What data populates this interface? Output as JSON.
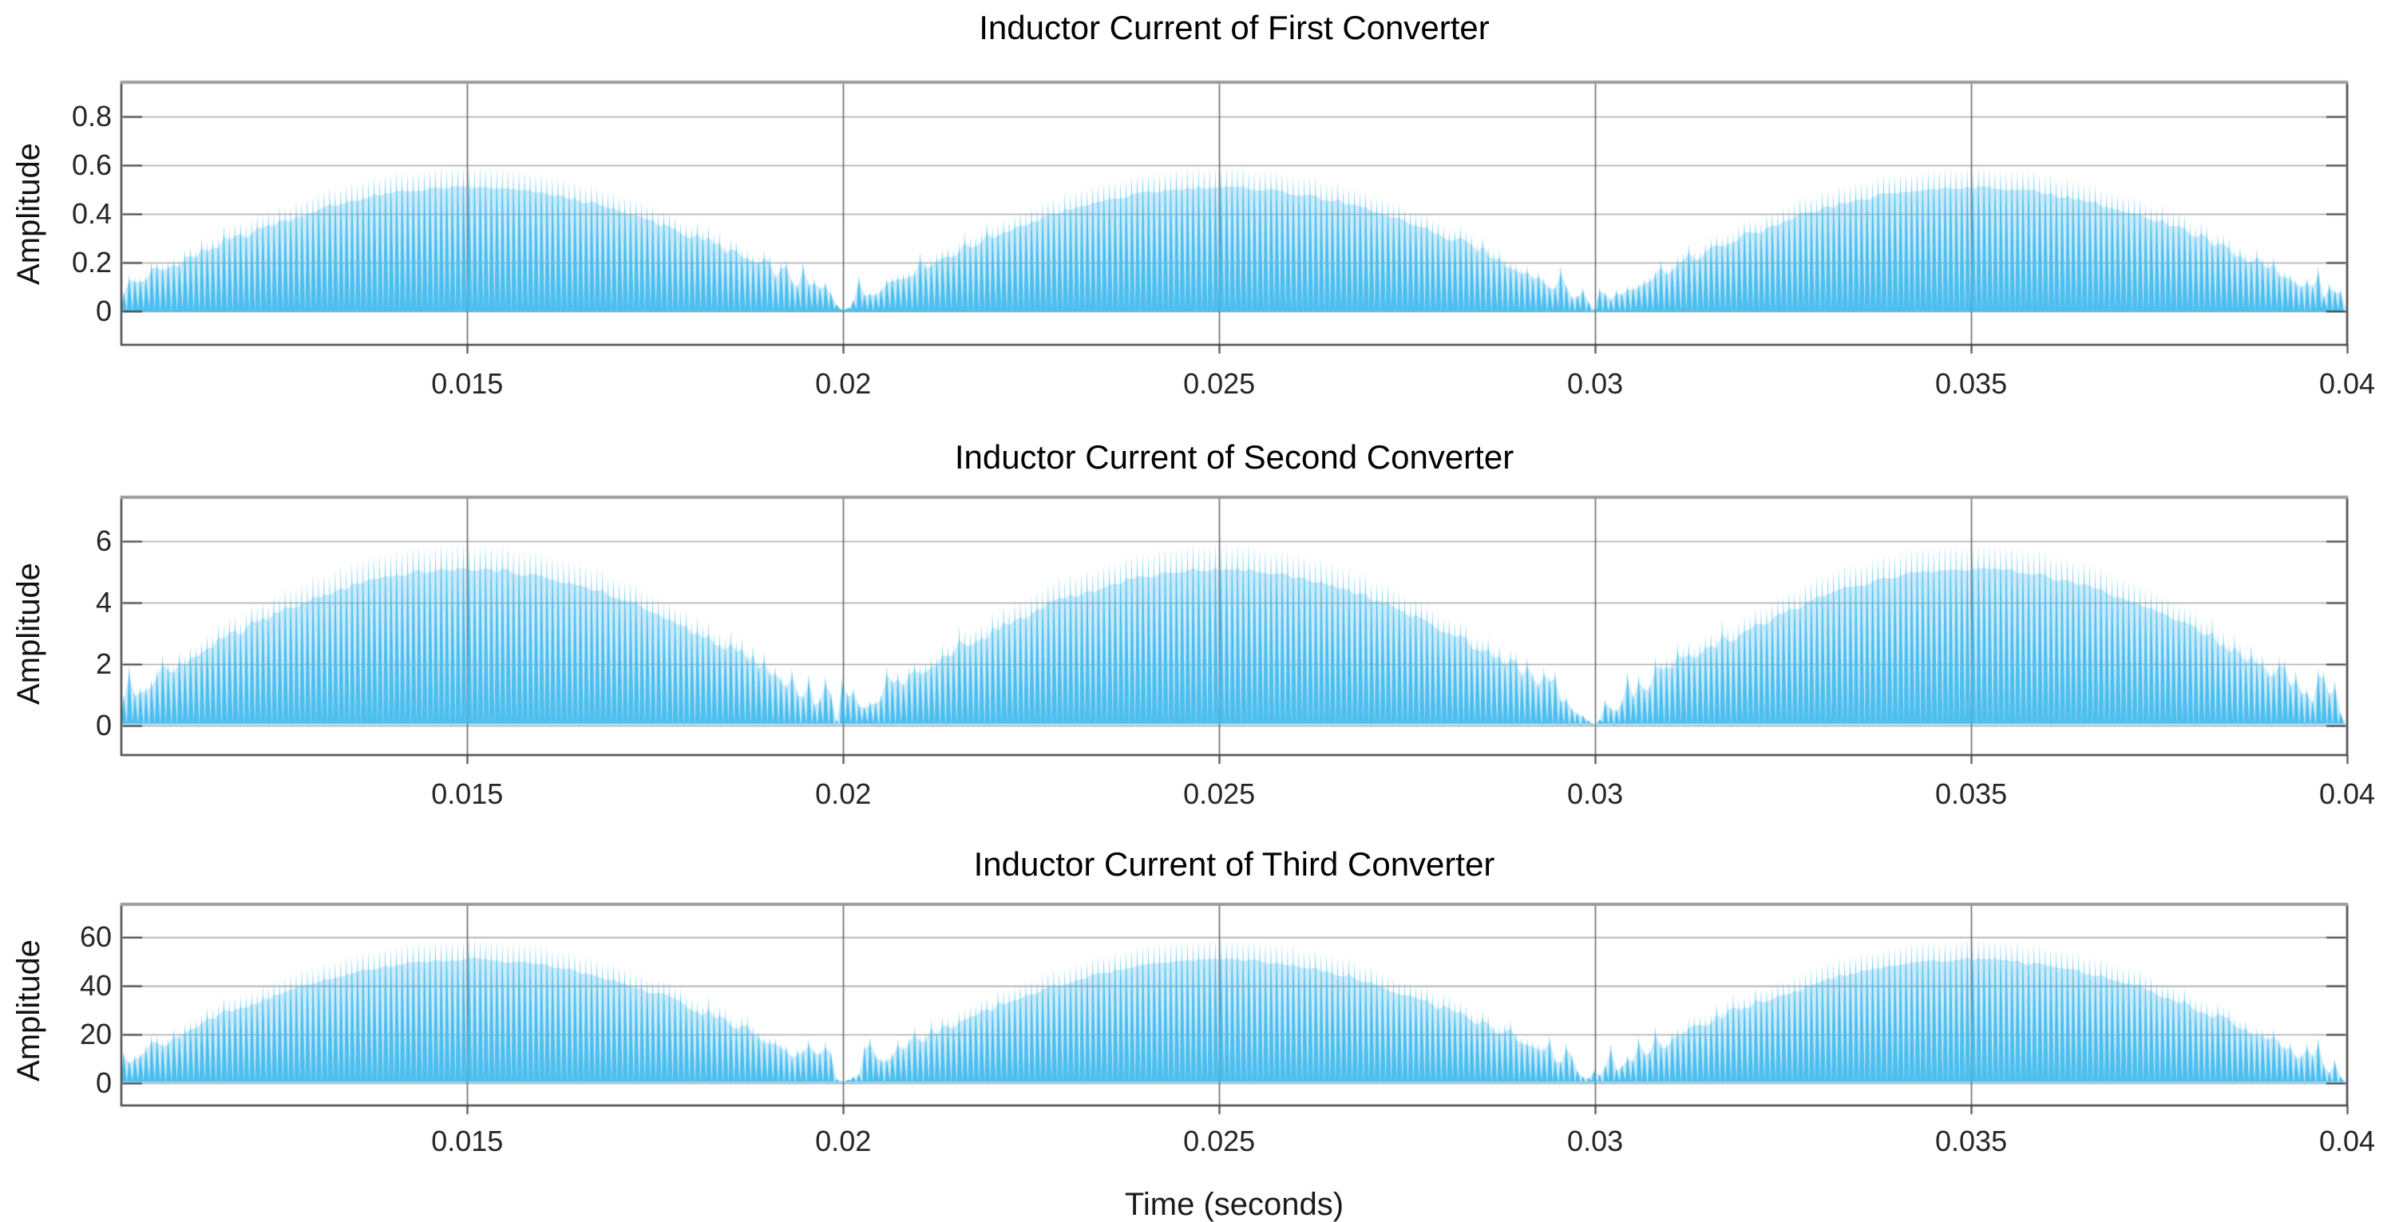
{
  "figure": {
    "background_color": "#ffffff",
    "xlabel": "Time (seconds)",
    "line_color": "#4DBEEE",
    "underfill_color": "rgba(77,190,238,0.30)",
    "hgrid_color": "#a9a9a9",
    "vgrid_color": "#6f6f6f",
    "vgrid_overlay_color": "rgba(75,75,75,0.22)",
    "box_color": "#4a4a4a",
    "box_top_color": "#9e9e9e",
    "tick_mark_color": "#3c3c3c",
    "text_color": "#262626"
  },
  "chart_data": [
    {
      "type": "line",
      "title": "Inductor Current of First Converter",
      "ylabel": "Amplitude",
      "xlim": [
        0.0104,
        0.04
      ],
      "ylim": [
        -0.138,
        0.941
      ],
      "xtick_values": [
        0.015,
        0.02,
        0.025,
        0.03,
        0.035,
        0.04
      ],
      "xtick_labels": [
        "0.015",
        "0.02",
        "0.025",
        "0.03",
        "0.035",
        "0.04"
      ],
      "ytick_values": [
        0,
        0.2,
        0.4,
        0.6,
        0.8
      ],
      "ytick_labels": [
        "0",
        "0.2",
        "0.4",
        "0.6",
        "0.8"
      ],
      "grid": true,
      "line_color": "#4DBEEE",
      "waveform": {
        "kind": "pwm-sawtooth",
        "envelope": "peak*abs(sin(2*pi*50*t))",
        "envelope_peak": 0.59,
        "envelope_zero_times": [
          0.01,
          0.02,
          0.03,
          0.04
        ],
        "hump_peak_times": [
          0.015,
          0.025,
          0.035
        ],
        "hump_peak_value": 0.59,
        "switching_frequency_hz": 13500,
        "min_value": 0
      }
    },
    {
      "type": "line",
      "title": "Inductor Current of Second Converter",
      "ylabel": "Amplitude",
      "xlim": [
        0.0104,
        0.04
      ],
      "ylim": [
        -0.96,
        7.43
      ],
      "xtick_values": [
        0.015,
        0.02,
        0.025,
        0.03,
        0.035,
        0.04
      ],
      "xtick_labels": [
        "0.015",
        "0.02",
        "0.025",
        "0.03",
        "0.035",
        "0.04"
      ],
      "ytick_values": [
        0,
        2,
        4,
        6
      ],
      "ytick_labels": [
        "0",
        "2",
        "4",
        "6"
      ],
      "grid": true,
      "line_color": "#4DBEEE",
      "waveform": {
        "kind": "pwm-sawtooth",
        "envelope": "peak*abs(sin(2*pi*50*t))",
        "envelope_peak": 5.9,
        "envelope_zero_times": [
          0.01,
          0.02,
          0.03,
          0.04
        ],
        "hump_peak_times": [
          0.015,
          0.025,
          0.035
        ],
        "hump_peak_value": 5.9,
        "switching_frequency_hz": 13500,
        "min_value": 0
      }
    },
    {
      "type": "line",
      "title": "Inductor Current of Third Converter",
      "ylabel": "Amplitude",
      "xlabel": "Time (seconds)",
      "xlim": [
        0.0104,
        0.04
      ],
      "ylim": [
        -9.2,
        73.5
      ],
      "xtick_values": [
        0.015,
        0.02,
        0.025,
        0.03,
        0.035,
        0.04
      ],
      "xtick_labels": [
        "0.015",
        "0.02",
        "0.025",
        "0.03",
        "0.035",
        "0.04"
      ],
      "ytick_values": [
        0,
        20,
        40,
        60
      ],
      "ytick_labels": [
        "0",
        "20",
        "40",
        "60"
      ],
      "grid": true,
      "line_color": "#4DBEEE",
      "waveform": {
        "kind": "pwm-sawtooth",
        "envelope": "peak*abs(sin(2*pi*50*t))",
        "envelope_peak": 59,
        "envelope_zero_times": [
          0.01,
          0.02,
          0.03,
          0.04
        ],
        "hump_peak_times": [
          0.015,
          0.025,
          0.035
        ],
        "hump_peak_value": 59,
        "switching_frequency_hz": 13500,
        "min_value": 0
      }
    }
  ]
}
